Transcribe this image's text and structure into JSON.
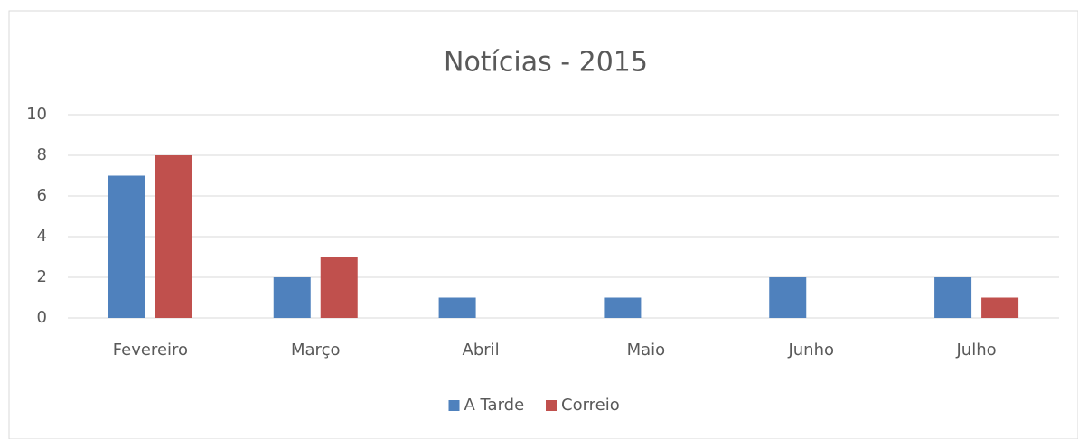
{
  "chart_data": {
    "type": "bar",
    "title": "Notícias - 2015",
    "categories": [
      "Fevereiro",
      "Março",
      "Abril",
      "Maio",
      "Junho",
      "Julho"
    ],
    "series": [
      {
        "name": "A Tarde",
        "color": "#4f81bd",
        "values": [
          7,
          2,
          1,
          1,
          2,
          2
        ]
      },
      {
        "name": "Correio",
        "color": "#c0504d",
        "values": [
          8,
          3,
          0,
          0,
          0,
          1
        ]
      }
    ],
    "ylim": [
      0,
      10
    ],
    "yticks": [
      0,
      2,
      4,
      6,
      8,
      10
    ],
    "grid": true,
    "legend": "bottom"
  }
}
